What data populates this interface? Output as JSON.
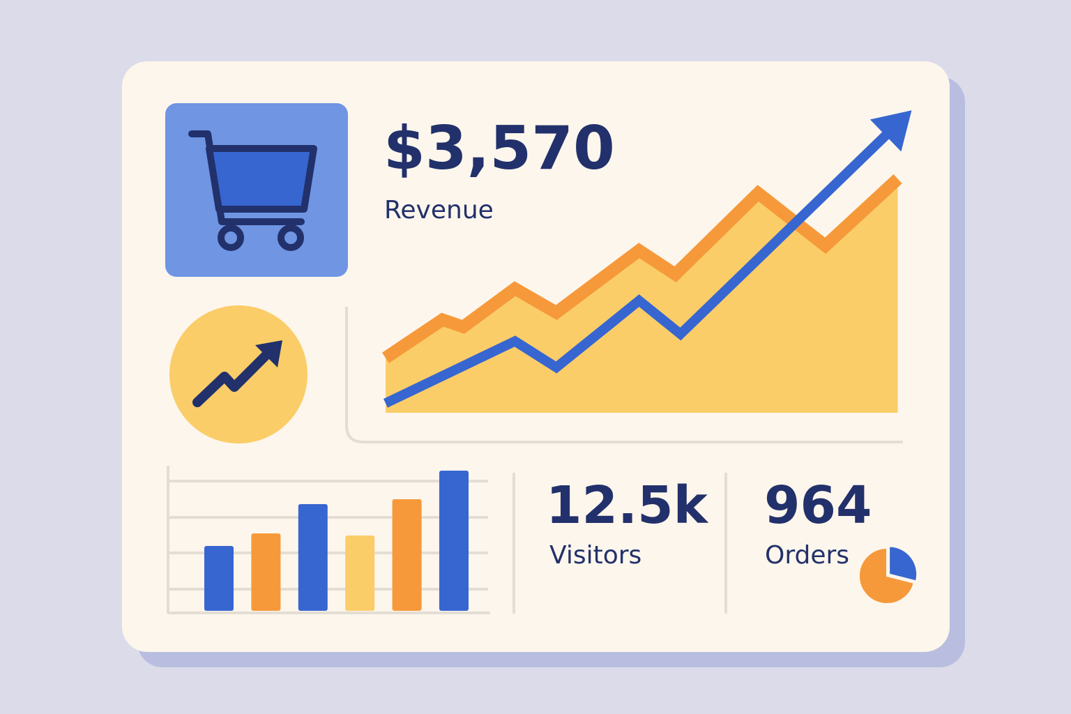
{
  "revenue": {
    "value": "$3,570",
    "label": "Revenue"
  },
  "visitors": {
    "value": "12.5k",
    "label": "Visitors"
  },
  "orders": {
    "value": "964",
    "label": "Orders"
  },
  "trend_chart": {
    "type": "area",
    "xlim": [
      0,
      100
    ],
    "ylim": [
      0,
      130
    ],
    "series": [
      {
        "color": "#f6993a",
        "fill": "#fbcd68",
        "x": [
          0,
          11,
          15,
          25,
          33,
          49,
          56,
          72,
          85,
          99
        ],
        "values": [
          23,
          39,
          36,
          52,
          42,
          68,
          58,
          92,
          70,
          98
        ]
      },
      {
        "color": "#3766d1",
        "x": [
          0,
          25,
          33,
          49,
          57,
          98
        ],
        "values": [
          4,
          30,
          19,
          47,
          33,
          119
        ]
      }
    ]
  },
  "bar_chart": {
    "type": "bar",
    "ylim": [
      0,
      210
    ],
    "values": [
      93,
      111,
      153,
      108,
      160,
      201
    ],
    "colors": [
      "#3766d1",
      "#f6993a",
      "#3766d1",
      "#fbcd68",
      "#f6993a",
      "#3766d1"
    ]
  },
  "pie_chart": {
    "type": "pie",
    "values": [
      29,
      71
    ],
    "colors": [
      "#3766d1",
      "#f6993a"
    ]
  }
}
